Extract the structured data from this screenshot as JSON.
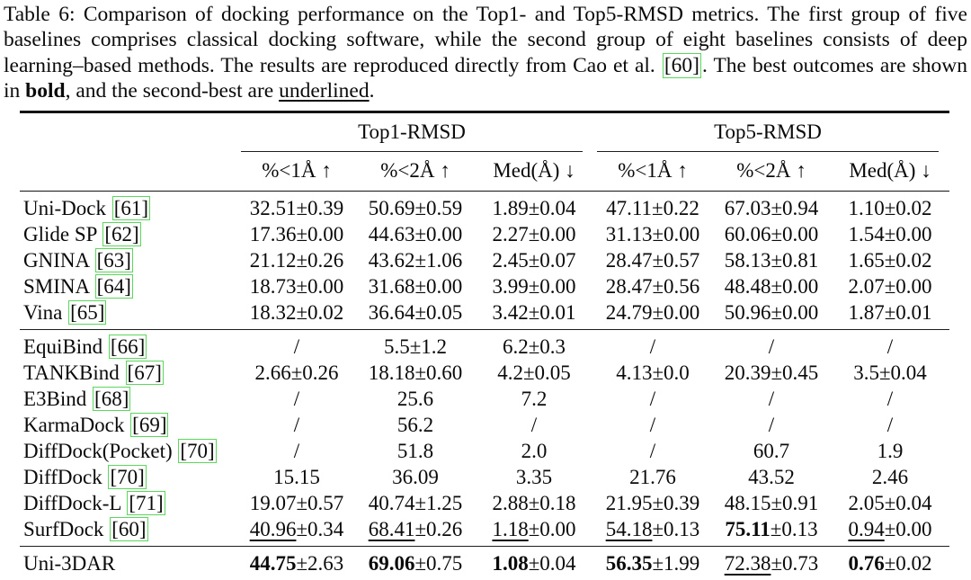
{
  "caption": {
    "part1": "Table 6: Comparison of docking performance on the Top1- and Top5-RMSD metrics. The first group of five baselines comprises classical docking software, while the second group of eight baselines consists of deep learning–based methods. The results are reproduced directly from Cao et al. ",
    "cite": "[60]",
    "part2": ". The best outcomes are shown in ",
    "bold_word": "bold",
    "part3": ", and the second-best are ",
    "underline_word": "underlined",
    "part4": "."
  },
  "colors": {
    "citation_box_green": "#5cd65c",
    "text": "#0a0a0a",
    "background": "#ffffff",
    "rule": "#141414"
  },
  "table": {
    "group_headers": [
      "Top1-RMSD",
      "Top5-RMSD"
    ],
    "sub_headers": [
      "%<1Å ↑",
      "%<2Å ↑",
      "Med(Å) ↓",
      "%<1Å ↑",
      "%<2Å ↑",
      "Med(Å) ↓"
    ],
    "groups": [
      {
        "name": "classical-docking-software",
        "rows": [
          {
            "method": "Uni-Dock",
            "cite": "[61]",
            "cells": [
              {
                "v": "32.51",
                "pm": "±0.39",
                "s": "n"
              },
              {
                "v": "50.69",
                "pm": "±0.59",
                "s": "n"
              },
              {
                "v": "1.89",
                "pm": "±0.04",
                "s": "n"
              },
              {
                "v": "47.11",
                "pm": "±0.22",
                "s": "n"
              },
              {
                "v": "67.03",
                "pm": "±0.94",
                "s": "n"
              },
              {
                "v": "1.10",
                "pm": "±0.02",
                "s": "n"
              }
            ]
          },
          {
            "method": "Glide SP",
            "cite": "[62]",
            "cells": [
              {
                "v": "17.36",
                "pm": "±0.00",
                "s": "n"
              },
              {
                "v": "44.63",
                "pm": "±0.00",
                "s": "n"
              },
              {
                "v": "2.27",
                "pm": "±0.00",
                "s": "n"
              },
              {
                "v": "31.13",
                "pm": "±0.00",
                "s": "n"
              },
              {
                "v": "60.06",
                "pm": "±0.00",
                "s": "n"
              },
              {
                "v": "1.54",
                "pm": "±0.00",
                "s": "n"
              }
            ]
          },
          {
            "method": "GNINA",
            "cite": "[63]",
            "cells": [
              {
                "v": "21.12",
                "pm": "±0.26",
                "s": "n"
              },
              {
                "v": "43.62",
                "pm": "±1.06",
                "s": "n"
              },
              {
                "v": "2.45",
                "pm": "±0.07",
                "s": "n"
              },
              {
                "v": "28.47",
                "pm": "±0.57",
                "s": "n"
              },
              {
                "v": "58.13",
                "pm": "±0.81",
                "s": "n"
              },
              {
                "v": "1.65",
                "pm": "±0.02",
                "s": "n"
              }
            ]
          },
          {
            "method": "SMINA",
            "cite": "[64]",
            "cells": [
              {
                "v": "18.73",
                "pm": "±0.00",
                "s": "n"
              },
              {
                "v": "31.68",
                "pm": "±0.00",
                "s": "n"
              },
              {
                "v": "3.99",
                "pm": "±0.00",
                "s": "n"
              },
              {
                "v": "28.47",
                "pm": "±0.56",
                "s": "n"
              },
              {
                "v": "48.48",
                "pm": "±0.00",
                "s": "n"
              },
              {
                "v": "2.07",
                "pm": "±0.00",
                "s": "n"
              }
            ]
          },
          {
            "method": "Vina",
            "cite": "[65]",
            "cells": [
              {
                "v": "18.32",
                "pm": "±0.02",
                "s": "n"
              },
              {
                "v": "36.64",
                "pm": "±0.05",
                "s": "n"
              },
              {
                "v": "3.42",
                "pm": "±0.01",
                "s": "n"
              },
              {
                "v": "24.79",
                "pm": "±0.00",
                "s": "n"
              },
              {
                "v": "50.96",
                "pm": "±0.00",
                "s": "n"
              },
              {
                "v": "1.87",
                "pm": "±0.01",
                "s": "n"
              }
            ]
          }
        ]
      },
      {
        "name": "deep-learning-methods",
        "rows": [
          {
            "method": "EquiBind",
            "cite": "[66]",
            "cells": [
              {
                "v": "/",
                "pm": "",
                "s": "n"
              },
              {
                "v": "5.5",
                "pm": "±1.2",
                "s": "n"
              },
              {
                "v": "6.2",
                "pm": "±0.3",
                "s": "n"
              },
              {
                "v": "/",
                "pm": "",
                "s": "n"
              },
              {
                "v": "/",
                "pm": "",
                "s": "n"
              },
              {
                "v": "/",
                "pm": "",
                "s": "n"
              }
            ]
          },
          {
            "method": "TANKBind",
            "cite": "[67]",
            "cells": [
              {
                "v": "2.66",
                "pm": "±0.26",
                "s": "n"
              },
              {
                "v": "18.18",
                "pm": "±0.60",
                "s": "n"
              },
              {
                "v": "4.2",
                "pm": "±0.05",
                "s": "n"
              },
              {
                "v": "4.13",
                "pm": "±0.0",
                "s": "n"
              },
              {
                "v": "20.39",
                "pm": "±0.45",
                "s": "n"
              },
              {
                "v": "3.5",
                "pm": "±0.04",
                "s": "n"
              }
            ]
          },
          {
            "method": "E3Bind",
            "cite": "[68]",
            "cells": [
              {
                "v": "/",
                "pm": "",
                "s": "n"
              },
              {
                "v": "25.6",
                "pm": "",
                "s": "n"
              },
              {
                "v": "7.2",
                "pm": "",
                "s": "n"
              },
              {
                "v": "/",
                "pm": "",
                "s": "n"
              },
              {
                "v": "/",
                "pm": "",
                "s": "n"
              },
              {
                "v": "/",
                "pm": "",
                "s": "n"
              }
            ]
          },
          {
            "method": "KarmaDock",
            "cite": "[69]",
            "cells": [
              {
                "v": "/",
                "pm": "",
                "s": "n"
              },
              {
                "v": "56.2",
                "pm": "",
                "s": "n"
              },
              {
                "v": "/",
                "pm": "",
                "s": "n"
              },
              {
                "v": "/",
                "pm": "",
                "s": "n"
              },
              {
                "v": "/",
                "pm": "",
                "s": "n"
              },
              {
                "v": "/",
                "pm": "",
                "s": "n"
              }
            ]
          },
          {
            "method": "DiffDock(Pocket)",
            "cite": "[70]",
            "cells": [
              {
                "v": "/",
                "pm": "",
                "s": "n"
              },
              {
                "v": "51.8",
                "pm": "",
                "s": "n"
              },
              {
                "v": "2.0",
                "pm": "",
                "s": "n"
              },
              {
                "v": "/",
                "pm": "",
                "s": "n"
              },
              {
                "v": "60.7",
                "pm": "",
                "s": "n"
              },
              {
                "v": "1.9",
                "pm": "",
                "s": "n"
              }
            ]
          },
          {
            "method": "DiffDock",
            "cite": "[70]",
            "cells": [
              {
                "v": "15.15",
                "pm": "",
                "s": "n"
              },
              {
                "v": "36.09",
                "pm": "",
                "s": "n"
              },
              {
                "v": "3.35",
                "pm": "",
                "s": "n"
              },
              {
                "v": "21.76",
                "pm": "",
                "s": "n"
              },
              {
                "v": "43.52",
                "pm": "",
                "s": "n"
              },
              {
                "v": "2.46",
                "pm": "",
                "s": "n"
              }
            ]
          },
          {
            "method": "DiffDock-L",
            "cite": "[71]",
            "cells": [
              {
                "v": "19.07",
                "pm": "±0.57",
                "s": "n"
              },
              {
                "v": "40.74",
                "pm": "±1.25",
                "s": "n"
              },
              {
                "v": "2.88",
                "pm": "±0.18",
                "s": "n"
              },
              {
                "v": "21.95",
                "pm": "±0.39",
                "s": "n"
              },
              {
                "v": "48.15",
                "pm": "±0.91",
                "s": "n"
              },
              {
                "v": "2.05",
                "pm": "±0.04",
                "s": "n"
              }
            ]
          },
          {
            "method": "SurfDock",
            "cite": "[60]",
            "cells": [
              {
                "v": "40.96",
                "pm": "±0.34",
                "s": "u"
              },
              {
                "v": "68.41",
                "pm": "±0.26",
                "s": "u"
              },
              {
                "v": "1.18",
                "pm": "±0.00",
                "s": "u"
              },
              {
                "v": "54.18",
                "pm": "±0.13",
                "s": "u"
              },
              {
                "v": "75.11",
                "pm": "±0.13",
                "s": "b"
              },
              {
                "v": "0.94",
                "pm": "±0.00",
                "s": "u"
              }
            ]
          }
        ]
      },
      {
        "name": "ours",
        "rows": [
          {
            "method": "Uni-3DAR",
            "cite": "",
            "cells": [
              {
                "v": "44.75",
                "pm": "±2.63",
                "s": "b"
              },
              {
                "v": "69.06",
                "pm": "±0.75",
                "s": "b"
              },
              {
                "v": "1.08",
                "pm": "±0.04",
                "s": "b"
              },
              {
                "v": "56.35",
                "pm": "±1.99",
                "s": "b"
              },
              {
                "v": "72.38",
                "pm": "±0.73",
                "s": "u"
              },
              {
                "v": "0.76",
                "pm": "±0.02",
                "s": "b"
              }
            ]
          }
        ]
      }
    ]
  }
}
